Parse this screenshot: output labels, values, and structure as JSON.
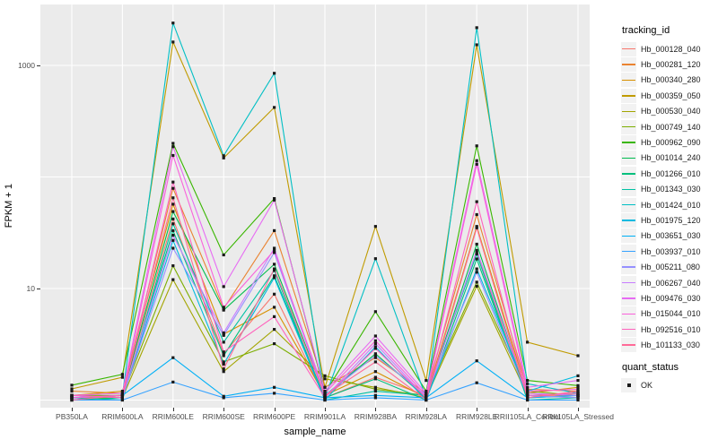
{
  "colors": {
    "figure_bg": "#FFFFFF",
    "panel_bg": "#EBEBEB",
    "gridline": "#FFFFFF",
    "axis_text": "#4D4D4D",
    "tick_mark": "#333333",
    "point_color": "#1a1a1a",
    "legend_key_bg": "#F2F2F2"
  },
  "chart_data": {
    "type": "line",
    "title": "",
    "xlabel": "sample_name",
    "ylabel": "FPKM + 1",
    "y_scale": "log10",
    "ylim": [
      1,
      3200
    ],
    "grid": true,
    "legend_position": "right",
    "point_shape": "filled-square",
    "y_ticks": [
      {
        "value": 1000,
        "label": "1000"
      },
      {
        "value": 10,
        "label": "10"
      }
    ],
    "y_gridlines": [
      1,
      10,
      100,
      1000
    ],
    "categories": [
      "PB350LA",
      "RRIM600LA",
      "RRIM600LE",
      "RRIM600SE",
      "RRIM600PE",
      "RRIM901LA",
      "RRIM928BA",
      "RRIM928LA",
      "RRIM928LE",
      "RRII105LA_Control",
      "RRII105LA_Stressed"
    ],
    "legends": {
      "tracking_title": "tracking_id",
      "quant_title": "quant_status",
      "quant_entries": [
        {
          "label": "OK",
          "shape": "filled-square",
          "color": "#1a1a1a"
        }
      ]
    },
    "series": [
      {
        "name": "Hb_000128_040",
        "color": "#F8766D",
        "values": [
          1.05,
          1.1,
          42,
          2.6,
          8.9,
          1.05,
          1.6,
          1.1,
          21,
          1.1,
          1.1
        ]
      },
      {
        "name": "Hb_000281_120",
        "color": "#EA8331",
        "values": [
          1.2,
          1.15,
          79,
          6.6,
          33,
          1.3,
          2.4,
          1.15,
          46,
          1.25,
          1.2
        ]
      },
      {
        "name": "Hb_000340_280",
        "color": "#D89000",
        "values": [
          1.1,
          1.2,
          57,
          3.9,
          6.8,
          1.1,
          1.8,
          1.05,
          36,
          1.15,
          1.3
        ]
      },
      {
        "name": "Hb_000359_050",
        "color": "#C09B00",
        "values": [
          1.26,
          1.6,
          1620,
          148,
          420,
          1.3,
          36,
          1.5,
          1530,
          3.3,
          2.5
        ]
      },
      {
        "name": "Hb_000530_040",
        "color": "#A3A500",
        "values": [
          1.05,
          1.05,
          12,
          1.8,
          4.3,
          1.55,
          1.3,
          1.05,
          10.5,
          1.1,
          1.05
        ]
      },
      {
        "name": "Hb_000749_140",
        "color": "#7CAE00",
        "values": [
          1.1,
          1.1,
          16,
          2.2,
          3.2,
          1.65,
          1.25,
          1.1,
          11.4,
          1.2,
          1.1
        ]
      },
      {
        "name": "Hb_000962_090",
        "color": "#39B600",
        "values": [
          1.36,
          1.7,
          200,
          20,
          64,
          1.15,
          6.2,
          1.2,
          190,
          1.5,
          1.35
        ]
      },
      {
        "name": "Hb_001014_240",
        "color": "#00BB4E",
        "values": [
          1.05,
          1.1,
          49,
          6.4,
          16.5,
          1.1,
          2.6,
          1.05,
          25,
          1.1,
          1.15
        ]
      },
      {
        "name": "Hb_001266_010",
        "color": "#00BF7D",
        "values": [
          1.0,
          1.05,
          33,
          2.5,
          13,
          1.05,
          1.55,
          1.0,
          18.4,
          1.05,
          1.1
        ]
      },
      {
        "name": "Hb_001343_030",
        "color": "#00C1A3",
        "values": [
          1.05,
          1.0,
          38,
          3.3,
          14.5,
          1.0,
          1.2,
          1.1,
          20.4,
          1.0,
          1.05
        ]
      },
      {
        "name": "Hb_001424_010",
        "color": "#00BFC4",
        "values": [
          1.0,
          1.1,
          2400,
          155,
          850,
          1.05,
          18.5,
          1.05,
          2180,
          1.4,
          1.15
        ]
      },
      {
        "name": "Hb_001975_120",
        "color": "#00BAE0",
        "values": [
          1.1,
          1.05,
          27,
          2.1,
          12.5,
          1.0,
          3.0,
          1.0,
          15,
          1.2,
          1.65
        ]
      },
      {
        "name": "Hb_003651_030",
        "color": "#00B0F6",
        "values": [
          1.05,
          1.1,
          2.4,
          1.08,
          1.3,
          1.05,
          1.1,
          1.05,
          2.25,
          1.05,
          1.1
        ]
      },
      {
        "name": "Hb_003937_010",
        "color": "#35A2FF",
        "values": [
          1.0,
          1.0,
          1.45,
          1.05,
          1.15,
          1.0,
          1.05,
          1.0,
          1.43,
          1.0,
          1.0
        ]
      },
      {
        "name": "Hb_005211_080",
        "color": "#9590FF",
        "values": [
          1.1,
          1.05,
          23,
          3.8,
          21,
          1.1,
          2.5,
          1.1,
          14,
          1.1,
          1.05
        ]
      },
      {
        "name": "Hb_006267_040",
        "color": "#C77CFF",
        "values": [
          1.05,
          1.1,
          30,
          4.0,
          23,
          1.05,
          3.2,
          1.05,
          22,
          1.15,
          1.1
        ]
      },
      {
        "name": "Hb_009476_030",
        "color": "#E76BF3",
        "values": [
          1.1,
          1.15,
          187,
          10.4,
          62,
          1.2,
          3.75,
          1.15,
          140,
          1.3,
          1.5
        ]
      },
      {
        "name": "Hb_015044_010",
        "color": "#FA62DB",
        "values": [
          1.05,
          1.1,
          156,
          6.8,
          22,
          1.15,
          3.4,
          1.1,
          130,
          1.2,
          1.25
        ]
      },
      {
        "name": "Hb_092516_010",
        "color": "#FF62BC",
        "values": [
          1.1,
          1.05,
          90,
          2.7,
          5.6,
          1.05,
          2.9,
          1.05,
          60,
          1.1,
          1.15
        ]
      },
      {
        "name": "Hb_101133_030",
        "color": "#FF6A98",
        "values": [
          1.0,
          1.1,
          65,
          1.9,
          15,
          1.1,
          2.2,
          1.0,
          35,
          1.05,
          1.2
        ]
      }
    ]
  }
}
